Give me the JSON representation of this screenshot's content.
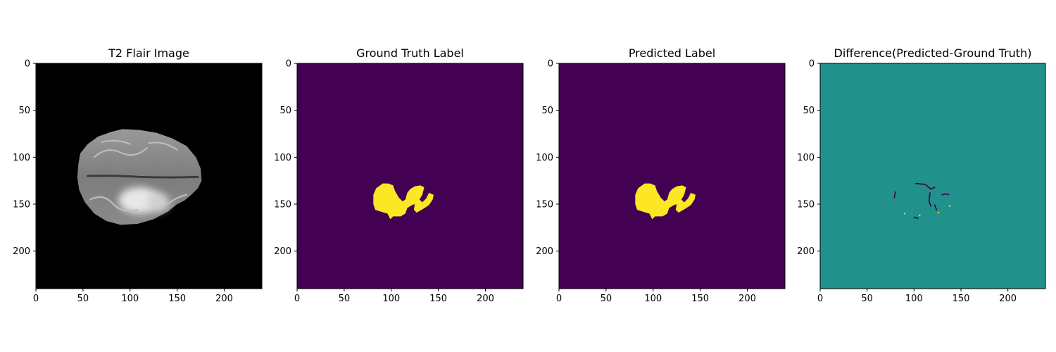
{
  "chart_data": [
    {
      "type": "heatmap",
      "title": "T2 Flair Image",
      "content": "grayscale-mri",
      "xlim": [
        0,
        240
      ],
      "ylim": [
        240,
        0
      ],
      "xticks": [
        0,
        50,
        100,
        150,
        200
      ],
      "yticks": [
        0,
        50,
        100,
        150,
        200
      ],
      "colors": {
        "background": "#000000"
      }
    },
    {
      "type": "heatmap",
      "title": "Ground Truth Label",
      "content": "label-mask",
      "xlim": [
        0,
        240
      ],
      "ylim": [
        240,
        0
      ],
      "xticks": [
        0,
        50,
        100,
        150,
        200
      ],
      "yticks": [
        0,
        50,
        100,
        150,
        200
      ],
      "colors": {
        "background": "#440154",
        "label": "#fde725"
      }
    },
    {
      "type": "heatmap",
      "title": "Predicted Label",
      "content": "label-mask",
      "xlim": [
        0,
        240
      ],
      "ylim": [
        240,
        0
      ],
      "xticks": [
        0,
        50,
        100,
        150,
        200
      ],
      "yticks": [
        0,
        50,
        100,
        150,
        200
      ],
      "colors": {
        "background": "#440154",
        "label": "#fde725"
      }
    },
    {
      "type": "heatmap",
      "title": "Difference(Predicted-Ground Truth)",
      "content": "difference-map",
      "xlim": [
        0,
        240
      ],
      "ylim": [
        240,
        0
      ],
      "xticks": [
        0,
        50,
        100,
        150,
        200
      ],
      "yticks": [
        0,
        50,
        100,
        150,
        200
      ],
      "colors": {
        "background": "#21918c",
        "negative": "#440154",
        "positive": "#fde725"
      }
    }
  ]
}
